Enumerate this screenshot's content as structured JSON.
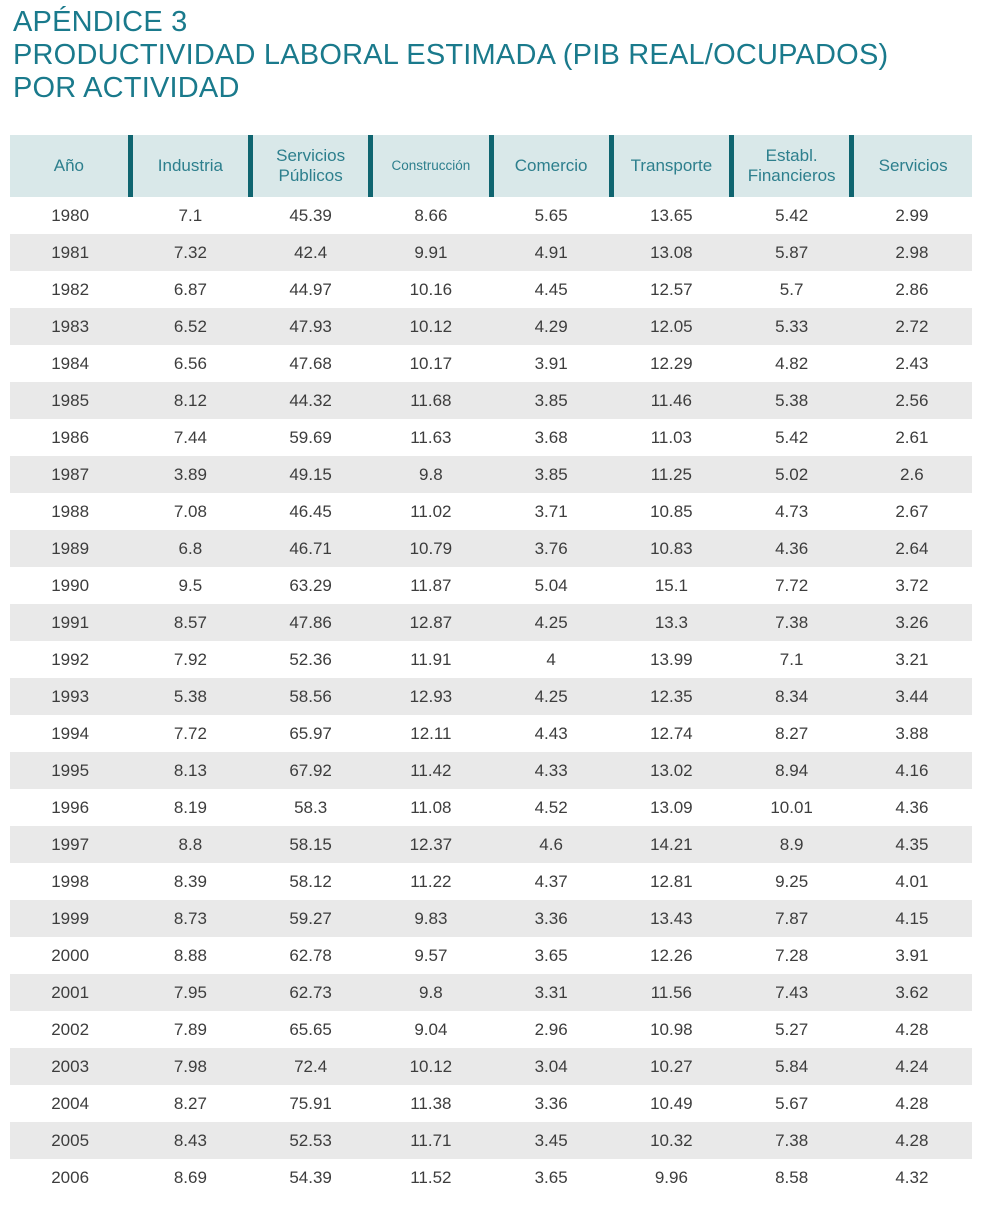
{
  "page": {
    "title_line1": "APÉNDICE 3",
    "title_line2": "PRODUCTIVIDAD LABORAL ESTIMADA (PIB REAL/OCUPADOS)",
    "title_line3": "POR ACTIVIDAD"
  },
  "colors": {
    "title_teal": "#1a7a8c",
    "header_bg": "#d9e8e9",
    "header_text": "#2d7f8d",
    "divider_teal": "#0f6570",
    "alt_row_bg": "#e9e9e9",
    "data_text": "#3d3d3d"
  },
  "table": {
    "headers": [
      "Año",
      "Industria",
      "Servicios Públicos",
      "Construcción",
      "Comercio",
      "Transporte",
      "Establ. Financieros",
      "Servicios"
    ],
    "rows": [
      [
        "1980",
        "7.1",
        "45.39",
        "8.66",
        "5.65",
        "13.65",
        "5.42",
        "2.99"
      ],
      [
        "1981",
        "7.32",
        "42.4",
        "9.91",
        "4.91",
        "13.08",
        "5.87",
        "2.98"
      ],
      [
        "1982",
        "6.87",
        "44.97",
        "10.16",
        "4.45",
        "12.57",
        "5.7",
        "2.86"
      ],
      [
        "1983",
        "6.52",
        "47.93",
        "10.12",
        "4.29",
        "12.05",
        "5.33",
        "2.72"
      ],
      [
        "1984",
        "6.56",
        "47.68",
        "10.17",
        "3.91",
        "12.29",
        "4.82",
        "2.43"
      ],
      [
        "1985",
        "8.12",
        "44.32",
        "11.68",
        "3.85",
        "11.46",
        "5.38",
        "2.56"
      ],
      [
        "1986",
        "7.44",
        "59.69",
        "11.63",
        "3.68",
        "11.03",
        "5.42",
        "2.61"
      ],
      [
        "1987",
        "3.89",
        "49.15",
        "9.8",
        "3.85",
        "11.25",
        "5.02",
        "2.6"
      ],
      [
        "1988",
        "7.08",
        "46.45",
        "11.02",
        "3.71",
        "10.85",
        "4.73",
        "2.67"
      ],
      [
        "1989",
        "6.8",
        "46.71",
        "10.79",
        "3.76",
        "10.83",
        "4.36",
        "2.64"
      ],
      [
        "1990",
        "9.5",
        "63.29",
        "11.87",
        "5.04",
        "15.1",
        "7.72",
        "3.72"
      ],
      [
        "1991",
        "8.57",
        "47.86",
        "12.87",
        "4.25",
        "13.3",
        "7.38",
        "3.26"
      ],
      [
        "1992",
        "7.92",
        "52.36",
        "11.91",
        "4",
        "13.99",
        "7.1",
        "3.21"
      ],
      [
        "1993",
        "5.38",
        "58.56",
        "12.93",
        "4.25",
        "12.35",
        "8.34",
        "3.44"
      ],
      [
        "1994",
        "7.72",
        "65.97",
        "12.11",
        "4.43",
        "12.74",
        "8.27",
        "3.88"
      ],
      [
        "1995",
        "8.13",
        "67.92",
        "11.42",
        "4.33",
        "13.02",
        "8.94",
        "4.16"
      ],
      [
        "1996",
        "8.19",
        "58.3",
        "11.08",
        "4.52",
        "13.09",
        "10.01",
        "4.36"
      ],
      [
        "1997",
        "8.8",
        "58.15",
        "12.37",
        "4.6",
        "14.21",
        "8.9",
        "4.35"
      ],
      [
        "1998",
        "8.39",
        "58.12",
        "11.22",
        "4.37",
        "12.81",
        "9.25",
        "4.01"
      ],
      [
        "1999",
        "8.73",
        "59.27",
        "9.83",
        "3.36",
        "13.43",
        "7.87",
        "4.15"
      ],
      [
        "2000",
        "8.88",
        "62.78",
        "9.57",
        "3.65",
        "12.26",
        "7.28",
        "3.91"
      ],
      [
        "2001",
        "7.95",
        "62.73",
        "9.8",
        "3.31",
        "11.56",
        "7.43",
        "3.62"
      ],
      [
        "2002",
        "7.89",
        "65.65",
        "9.04",
        "2.96",
        "10.98",
        "5.27",
        "4.28"
      ],
      [
        "2003",
        "7.98",
        "72.4",
        "10.12",
        "3.04",
        "10.27",
        "5.84",
        "4.24"
      ],
      [
        "2004",
        "8.27",
        "75.91",
        "11.38",
        "3.36",
        "10.49",
        "5.67",
        "4.28"
      ],
      [
        "2005",
        "8.43",
        "52.53",
        "11.71",
        "3.45",
        "10.32",
        "7.38",
        "4.28"
      ],
      [
        "2006",
        "8.69",
        "54.39",
        "11.52",
        "3.65",
        "9.96",
        "8.58",
        "4.32"
      ]
    ]
  }
}
